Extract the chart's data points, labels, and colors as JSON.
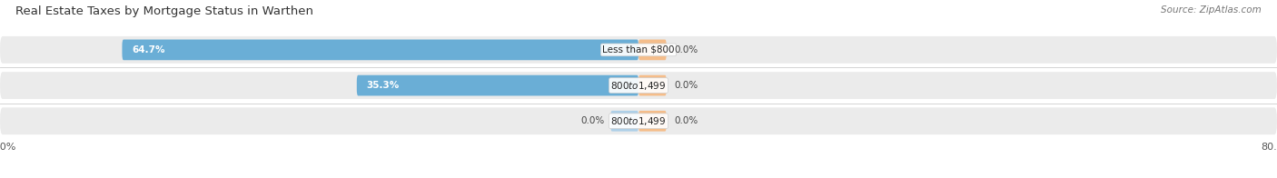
{
  "title": "Real Estate Taxes by Mortgage Status in Warthen",
  "source": "Source: ZipAtlas.com",
  "rows": [
    {
      "label": "Less than $800",
      "without_mortgage": 64.7,
      "with_mortgage": 0.0,
      "wo_label": "64.7%",
      "wm_label": "0.0%"
    },
    {
      "label": "$800 to $1,499",
      "without_mortgage": 35.3,
      "with_mortgage": 0.0,
      "wo_label": "35.3%",
      "wm_label": "0.0%"
    },
    {
      "label": "$800 to $1,499",
      "without_mortgage": 0.0,
      "with_mortgage": 0.0,
      "wo_label": "0.0%",
      "wm_label": "0.0%"
    }
  ],
  "color_without": "#6aaed6",
  "color_without_light": "#aed0e8",
  "color_with": "#f5bd8a",
  "row_background": "#ebebeb",
  "axis_limit": 80.0,
  "title_fontsize": 9.5,
  "source_fontsize": 7.5,
  "label_fontsize": 7.5,
  "tick_fontsize": 8,
  "legend_fontsize": 8
}
